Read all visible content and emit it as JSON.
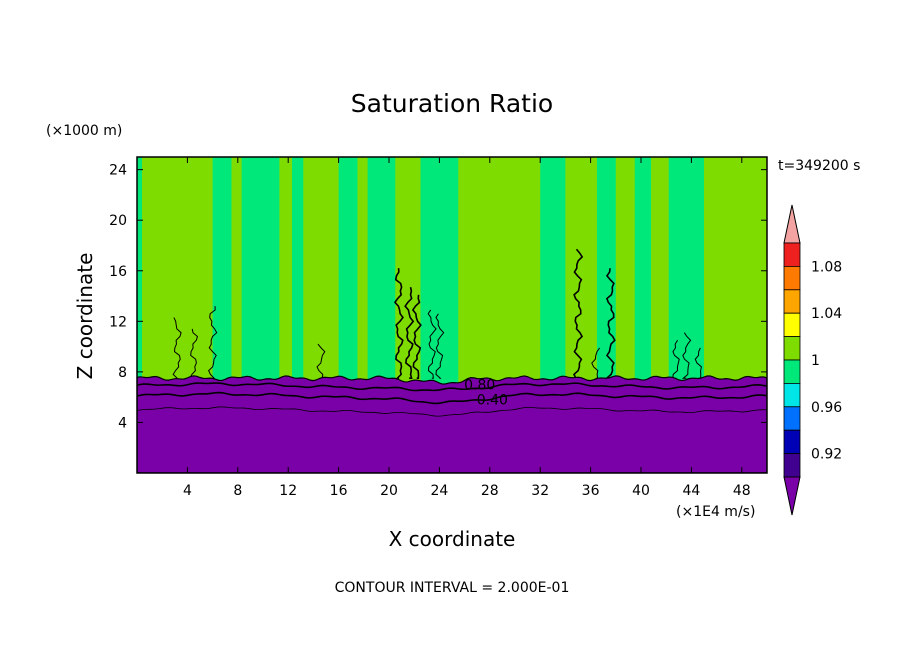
{
  "chart_data": {
    "type": "heatmap",
    "title": "Saturation Ratio",
    "xlabel": "X coordinate",
    "ylabel": "Z coordinate",
    "x_unit": "(×1E4 m/s)",
    "y_unit": "(×1000 m)",
    "time_label": "t=349200 s",
    "footer": "CONTOUR INTERVAL = 2.000E-01",
    "xlim": [
      0,
      50
    ],
    "ylim": [
      0,
      25
    ],
    "x_ticks": [
      4,
      8,
      12,
      16,
      20,
      24,
      28,
      32,
      36,
      40,
      44,
      48
    ],
    "y_ticks": [
      4,
      8,
      12,
      16,
      20,
      24
    ],
    "contour_labels": [
      {
        "text": "0.80",
        "x": 27.2,
        "z": 7.0
      },
      {
        "text": "0.40",
        "x": 28.2,
        "z": 5.8
      }
    ],
    "dry_layer_top_z": 7.5,
    "green_columns_x": [
      [
        0.4,
        6.0
      ],
      [
        7.5,
        8.3
      ],
      [
        11.3,
        12.3
      ],
      [
        13.2,
        16.0
      ],
      [
        17.5,
        18.3
      ],
      [
        20.5,
        22.5
      ],
      [
        25.5,
        32.0
      ],
      [
        34.0,
        36.5
      ],
      [
        38.0,
        39.5
      ],
      [
        40.8,
        42.2
      ],
      [
        45.0,
        50.0
      ]
    ],
    "colorbar": {
      "levels": [
        "1.08",
        "1.04",
        "1",
        "0.96",
        "0.92"
      ],
      "colors": [
        "#f4a3a3",
        "#ee2020",
        "#ff7a00",
        "#ffa500",
        "#ffff00",
        "#7fdc00",
        "#00e87a",
        "#00e6e6",
        "#0070ff",
        "#0000b4",
        "#400090",
        "#7a00a8"
      ]
    }
  }
}
